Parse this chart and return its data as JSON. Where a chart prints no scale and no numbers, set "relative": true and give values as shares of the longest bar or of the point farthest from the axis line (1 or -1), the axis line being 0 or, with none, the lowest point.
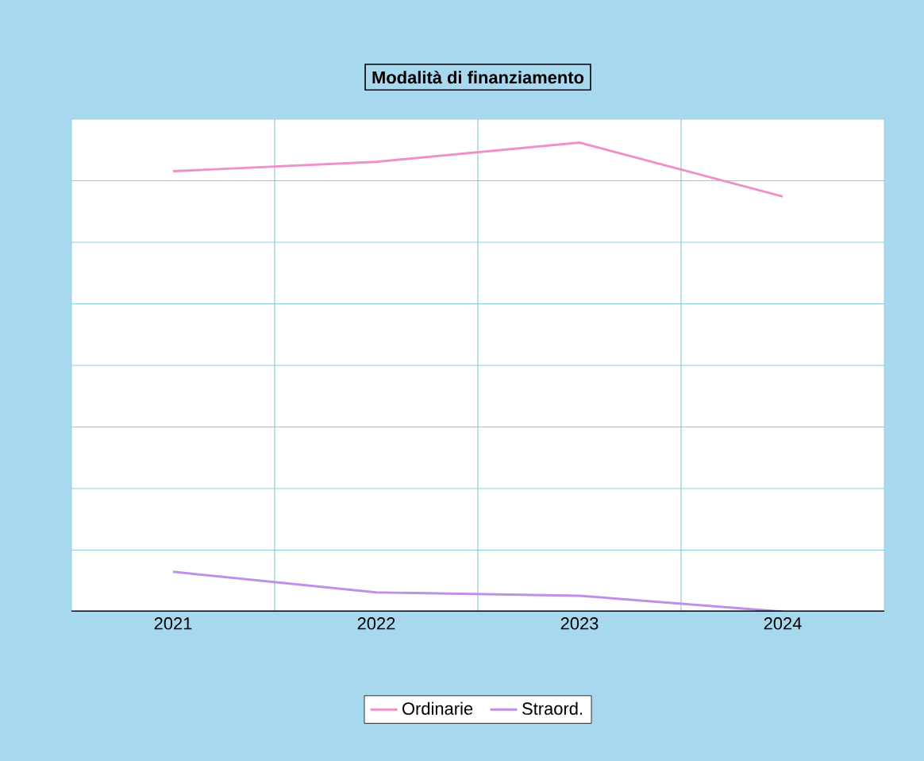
{
  "chart_data": {
    "type": "line",
    "title": "Modalità di finanziamento",
    "categories": [
      "2021",
      "2022",
      "2023",
      "2024"
    ],
    "relative": true,
    "grid": true,
    "legend": "bottom",
    "marker": "none",
    "line_style": "solid",
    "series": [
      {
        "name": "Ordinarie",
        "color": "#f090c8",
        "values": [
          0.939,
          0.959,
          1,
          0.885
        ]
      },
      {
        "name": "Straord.",
        "color": "#c090e8",
        "values": [
          0.085,
          0.041,
          0.034,
          0
        ]
      }
    ]
  }
}
